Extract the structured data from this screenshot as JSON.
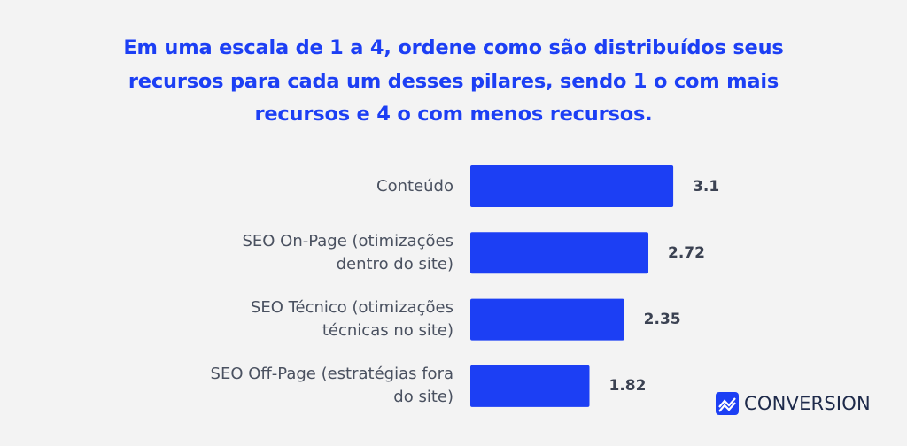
{
  "chart_data": {
    "type": "bar",
    "orientation": "horizontal",
    "title": "Em uma escala de 1 a 4, ordene como são distribuídos seus recursos para cada um desses pilares, sendo 1 o com mais recursos e 4 o com menos recursos.",
    "categories": [
      "Conteúdo",
      "SEO On-Page (otimizações dentro do site)",
      "SEO Técnico (otimizações técnicas no site)",
      "SEO Off-Page (estratégias fora do site)"
    ],
    "values": [
      3.1,
      2.72,
      2.35,
      1.82
    ],
    "color": "#1c3ff4"
  },
  "brand": "CONVERSION"
}
